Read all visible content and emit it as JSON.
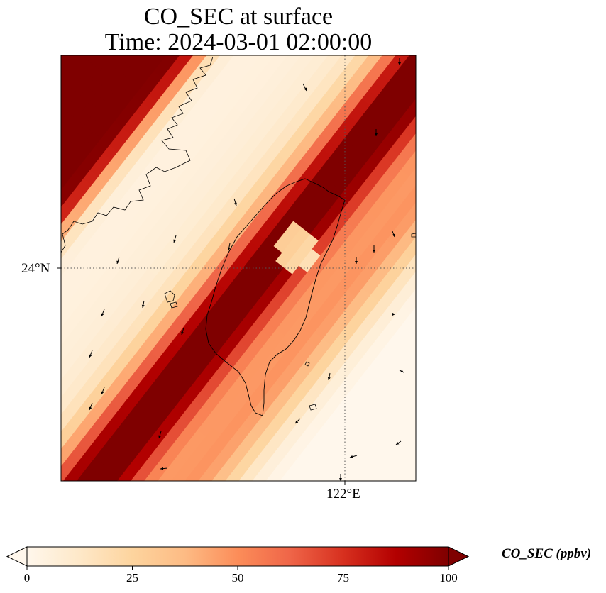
{
  "title": {
    "line1": "CO_SEC at surface",
    "line2": "Time: 2024-03-01 02:00:00"
  },
  "axes": {
    "latitude_tick": "24°N",
    "longitude_tick": "122°E",
    "gridlines": "dotted"
  },
  "colorbar": {
    "label": "CO_SEC (ppbv)",
    "min": 0,
    "max": 100,
    "ticks": [
      "0",
      "25",
      "50",
      "75",
      "100"
    ],
    "extend": "both",
    "colormap": "OrRd",
    "stops": [
      "#fff7ec",
      "#fee8c8",
      "#fdd49e",
      "#fdbb84",
      "#fc8d59",
      "#ef6548",
      "#d7301f",
      "#b30000",
      "#7f0000"
    ]
  },
  "map": {
    "region": "Taiwan and Taiwan Strait",
    "features": [
      "coastlines",
      "wind vectors",
      "CO_SEC concentration field"
    ]
  }
}
